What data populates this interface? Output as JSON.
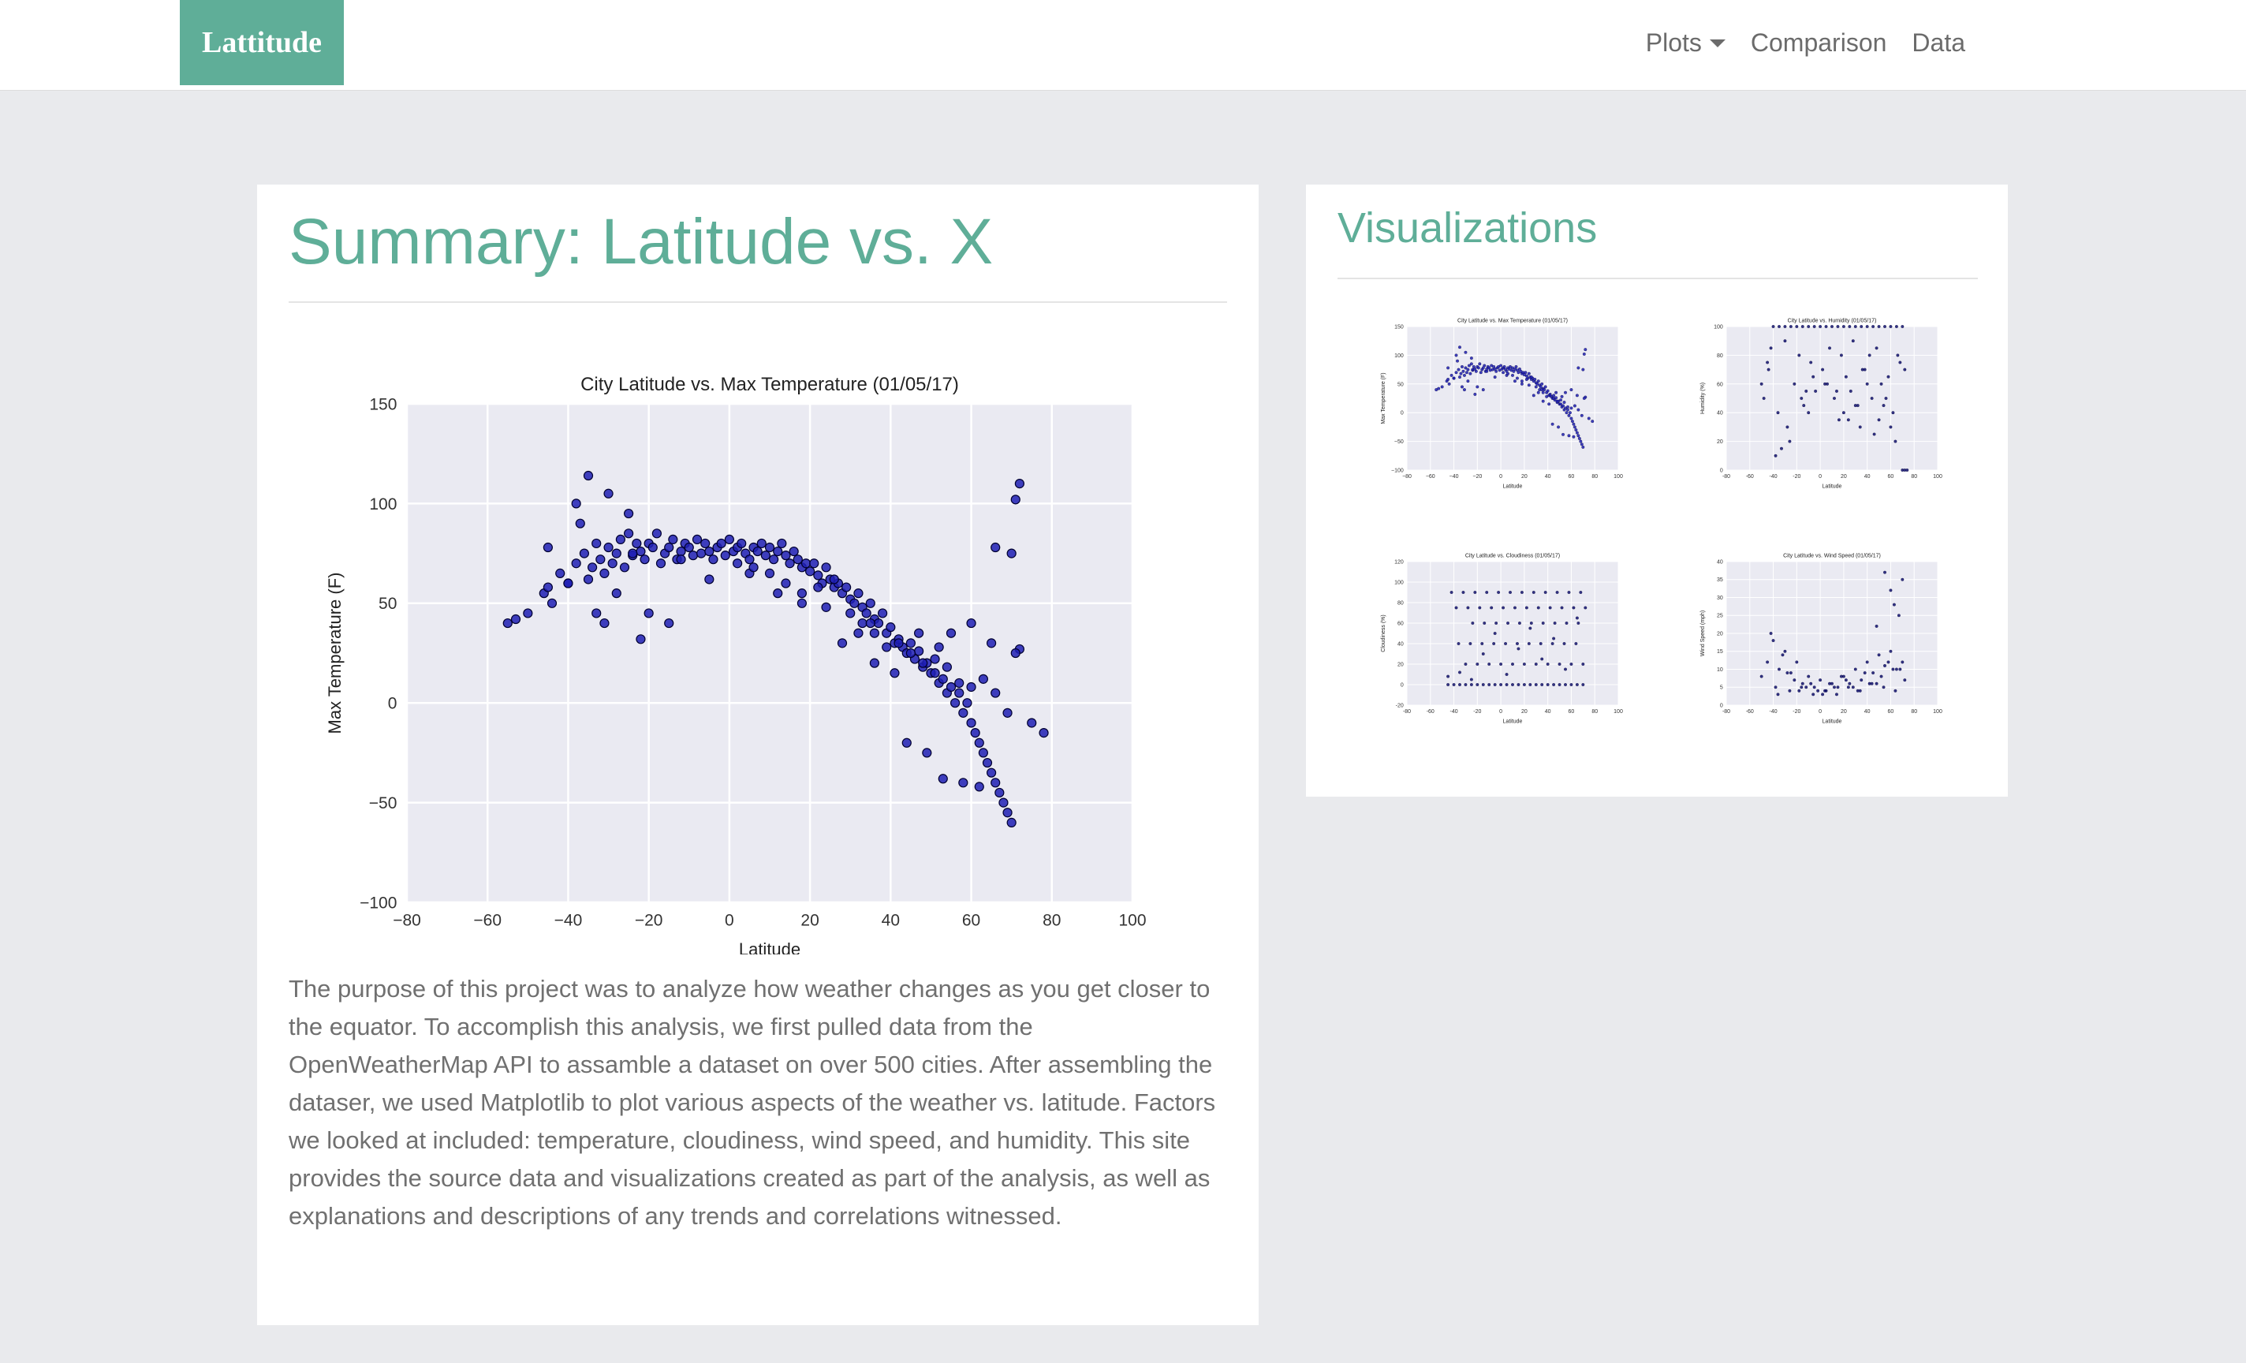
{
  "navbar": {
    "brand": "Lattitude",
    "links": [
      {
        "label": "Plots",
        "dropdown": true
      },
      {
        "label": "Comparison"
      },
      {
        "label": "Data"
      }
    ]
  },
  "summary": {
    "title": "Summary: Latitude vs. X",
    "text": "The purpose of this project was to analyze how weather changes as you get closer to the equator. To accomplish this analysis, we first pulled data from the OpenWeatherMap API to assamble a dataset on over 500 cities. After assembling the dataser, we used Matplotlib to plot various aspects of the weather vs. latitude. Factors we looked at included: temperature, cloudiness, wind speed, and humidity. This site provides the source data and visualizations created as part of the analysis, as well as explanations and descriptions of any trends and correlations witnessed."
  },
  "visualizations": {
    "title": "Visualizations"
  },
  "colors": {
    "accent": "#5fae98",
    "page_bg": "#e9eaed",
    "plot_bg": "#eaeaf2",
    "marker": "#1f1fb4",
    "marker_small": "#101070"
  },
  "chart_data": [
    {
      "id": "max_temp",
      "type": "scatter",
      "title": "City Latitude vs. Max Temperature (01/05/17)",
      "xlabel": "Latitude",
      "ylabel": "Max Temperature (F)",
      "xlim": [
        -80,
        100
      ],
      "ylim": [
        -100,
        150
      ],
      "xticks": [
        "−80",
        "−60",
        "−40",
        "−20",
        "0",
        "20",
        "40",
        "60",
        "80",
        "100"
      ],
      "yticks": [
        "150",
        "100",
        "50",
        "0",
        "−50",
        "−100"
      ],
      "grid": true,
      "x": [
        -55,
        -53,
        -50,
        -46,
        -45,
        -44,
        -42,
        -40,
        -38,
        -37,
        -36,
        -35,
        -34,
        -33,
        -32,
        -31,
        -30,
        -29,
        -28,
        -27,
        -26,
        -25,
        -24,
        -23,
        -22,
        -21,
        -20,
        -19,
        -18,
        -17,
        -16,
        -15,
        -14,
        -13,
        -12,
        -11,
        -10,
        -9,
        -8,
        -7,
        -6,
        -5,
        -4,
        -3,
        -2,
        -1,
        0,
        1,
        2,
        3,
        4,
        5,
        6,
        7,
        8,
        9,
        10,
        11,
        12,
        13,
        14,
        15,
        16,
        17,
        18,
        19,
        20,
        21,
        22,
        23,
        24,
        25,
        26,
        27,
        28,
        29,
        30,
        31,
        32,
        33,
        34,
        35,
        36,
        37,
        38,
        39,
        40,
        41,
        42,
        43,
        44,
        45,
        46,
        47,
        48,
        49,
        50,
        51,
        52,
        53,
        54,
        55,
        56,
        57,
        58,
        59,
        60,
        61,
        62,
        63,
        64,
        65,
        66,
        67,
        68,
        69,
        70,
        71,
        72,
        -38,
        -35,
        -30,
        -25,
        -20,
        -15,
        -22,
        -28,
        -33,
        -40,
        -45,
        -31,
        -24,
        -12,
        -5,
        5,
        12,
        18,
        24,
        30,
        33,
        36,
        39,
        42,
        45,
        48,
        51,
        54,
        57,
        60,
        63,
        66,
        69,
        72,
        75,
        78,
        44,
        49,
        53,
        58,
        62,
        66,
        70,
        55,
        60,
        65,
        71,
        36,
        41,
        47,
        52,
        35,
        32,
        28,
        26,
        22,
        18,
        14,
        10,
        6,
        2
      ],
      "y": [
        40,
        42,
        45,
        55,
        58,
        50,
        65,
        60,
        70,
        90,
        75,
        62,
        68,
        80,
        72,
        65,
        78,
        70,
        75,
        82,
        68,
        85,
        74,
        80,
        76,
        72,
        80,
        78,
        85,
        70,
        75,
        78,
        82,
        72,
        76,
        80,
        78,
        74,
        82,
        75,
        80,
        76,
        72,
        78,
        80,
        74,
        82,
        76,
        78,
        80,
        75,
        72,
        78,
        76,
        80,
        74,
        78,
        72,
        76,
        80,
        74,
        70,
        76,
        72,
        68,
        70,
        66,
        70,
        64,
        60,
        68,
        62,
        58,
        60,
        55,
        58,
        52,
        50,
        55,
        48,
        45,
        50,
        42,
        40,
        45,
        35,
        38,
        30,
        32,
        28,
        25,
        30,
        22,
        26,
        18,
        20,
        15,
        22,
        10,
        12,
        5,
        8,
        0,
        5,
        -5,
        0,
        -10,
        -15,
        -20,
        -25,
        -30,
        -35,
        -40,
        -45,
        -50,
        -55,
        -60,
        102,
        110,
        100,
        114,
        105,
        95,
        45,
        40,
        32,
        55,
        45,
        60,
        78,
        40,
        75,
        72,
        62,
        65,
        55,
        50,
        48,
        45,
        40,
        35,
        28,
        30,
        25,
        20,
        15,
        18,
        10,
        8,
        12,
        5,
        -5,
        27,
        -10,
        -15,
        -20,
        -25,
        -38,
        -40,
        -42,
        78,
        75,
        35,
        40,
        30,
        25,
        20,
        15,
        35,
        28,
        40,
        35,
        30,
        62,
        58,
        55,
        60,
        65,
        68,
        70
      ],
      "marker": "#1f1fb4"
    },
    {
      "id": "humidity",
      "type": "scatter",
      "title": "City Latitude vs. Humidity (01/05/17)",
      "xlabel": "Latitude",
      "ylabel": "Humidity (%)",
      "xlim": [
        -80,
        100
      ],
      "ylim": [
        0,
        100
      ],
      "xticks": [
        "-80",
        "-60",
        "-40",
        "-20",
        "0",
        "20",
        "40",
        "60",
        "80",
        "100"
      ],
      "yticks": [
        "100",
        "80",
        "60",
        "40",
        "20",
        "0"
      ],
      "grid": true,
      "x": [
        -50,
        -45,
        -40,
        -35,
        -30,
        -25,
        -20,
        -15,
        -10,
        -5,
        0,
        5,
        10,
        15,
        20,
        25,
        30,
        35,
        40,
        45,
        50,
        55,
        60,
        65,
        70,
        -42,
        -30,
        -18,
        -8,
        8,
        18,
        28,
        38,
        48,
        58,
        68,
        -36,
        -22,
        -12,
        2,
        12,
        22,
        32,
        42,
        52,
        62,
        72,
        -48,
        -28,
        -14,
        6,
        16,
        26,
        36,
        46,
        56,
        66,
        -26,
        -10,
        14,
        34,
        54,
        -33,
        -6,
        24,
        44,
        64,
        -38,
        -16,
        4,
        20,
        40,
        60,
        70,
        72,
        74,
        -44,
        -4,
        30,
        50
      ],
      "y": [
        60,
        75,
        100,
        100,
        100,
        100,
        100,
        100,
        100,
        100,
        100,
        100,
        100,
        100,
        100,
        100,
        100,
        100,
        100,
        100,
        100,
        100,
        100,
        100,
        100,
        85,
        90,
        80,
        75,
        85,
        80,
        90,
        70,
        85,
        65,
        75,
        40,
        60,
        55,
        70,
        50,
        65,
        45,
        80,
        60,
        40,
        70,
        50,
        30,
        45,
        60,
        35,
        55,
        70,
        25,
        50,
        80,
        20,
        40,
        55,
        30,
        45,
        15,
        65,
        35,
        50,
        20,
        10,
        50,
        60,
        40,
        60,
        30,
        0,
        0,
        0,
        70,
        55,
        45,
        35
      ],
      "marker": "#101070"
    },
    {
      "id": "cloudiness",
      "type": "scatter",
      "title": "City Latitude vs. Cloudiness (01/05/17)",
      "xlabel": "Latitude",
      "ylabel": "Cloudiness (%)",
      "xlim": [
        -80,
        100
      ],
      "ylim": [
        -20,
        120
      ],
      "xticks": [
        "-80",
        "-60",
        "-40",
        "-20",
        "0",
        "20",
        "40",
        "60",
        "80",
        "100"
      ],
      "yticks": [
        "120",
        "100",
        "80",
        "60",
        "40",
        "20",
        "0",
        "-20"
      ],
      "grid": true,
      "x": [
        -45,
        -40,
        -35,
        -30,
        -25,
        -20,
        -15,
        -10,
        -5,
        0,
        5,
        10,
        15,
        20,
        25,
        30,
        35,
        40,
        45,
        50,
        55,
        60,
        65,
        70,
        -38,
        -28,
        -18,
        -8,
        2,
        12,
        22,
        32,
        42,
        52,
        62,
        72,
        -42,
        -32,
        -22,
        -12,
        -2,
        8,
        18,
        28,
        38,
        48,
        58,
        68,
        -36,
        -26,
        -16,
        -6,
        4,
        14,
        24,
        34,
        44,
        54,
        64,
        -30,
        -20,
        -10,
        0,
        10,
        20,
        30,
        40,
        50,
        60,
        70,
        -24,
        -14,
        -4,
        6,
        16,
        26,
        36,
        46,
        56,
        66,
        -45,
        -35,
        -25,
        -15,
        -5,
        5,
        15,
        25,
        35,
        45,
        55,
        65
      ],
      "y": [
        0,
        0,
        0,
        0,
        0,
        0,
        0,
        0,
        0,
        0,
        0,
        0,
        0,
        0,
        0,
        0,
        0,
        0,
        0,
        0,
        0,
        0,
        0,
        0,
        75,
        75,
        75,
        75,
        75,
        75,
        75,
        75,
        75,
        75,
        75,
        75,
        90,
        90,
        90,
        90,
        90,
        90,
        90,
        90,
        90,
        90,
        90,
        90,
        40,
        40,
        40,
        40,
        40,
        40,
        40,
        40,
        40,
        40,
        40,
        20,
        20,
        20,
        20,
        20,
        20,
        20,
        20,
        20,
        20,
        20,
        60,
        60,
        60,
        60,
        60,
        60,
        60,
        60,
        60,
        60,
        8,
        12,
        5,
        30,
        50,
        10,
        35,
        55,
        25,
        45,
        15,
        65
      ],
      "marker": "#101070"
    },
    {
      "id": "wind_speed",
      "type": "scatter",
      "title": "City Latitude vs. Wind Speed (01/05/17)",
      "xlabel": "Latitude",
      "ylabel": "Wind Speed (mph)",
      "xlim": [
        -80,
        100
      ],
      "ylim": [
        0,
        40
      ],
      "xticks": [
        "-80",
        "-60",
        "-40",
        "-20",
        "0",
        "20",
        "40",
        "60",
        "80",
        "100"
      ],
      "yticks": [
        "40",
        "35",
        "30",
        "25",
        "20",
        "15",
        "10",
        "5",
        "0"
      ],
      "grid": true,
      "x": [
        -50,
        -45,
        -40,
        -35,
        -30,
        -25,
        -20,
        -15,
        -10,
        -5,
        0,
        5,
        10,
        15,
        20,
        25,
        30,
        35,
        40,
        45,
        50,
        55,
        60,
        65,
        70,
        -42,
        -32,
        -22,
        -12,
        -2,
        8,
        18,
        28,
        38,
        48,
        58,
        68,
        -38,
        -28,
        -18,
        -8,
        2,
        12,
        22,
        32,
        42,
        52,
        62,
        72,
        -36,
        -26,
        -16,
        -6,
        4,
        14,
        24,
        34,
        44,
        54,
        64,
        55,
        60,
        63,
        67,
        70,
        48
      ],
      "y": [
        8,
        12,
        18,
        10,
        15,
        9,
        12,
        6,
        8,
        5,
        7,
        4,
        6,
        5,
        8,
        6,
        10,
        7,
        12,
        9,
        14,
        11,
        15,
        10,
        12,
        20,
        14,
        7,
        5,
        4,
        6,
        8,
        5,
        9,
        6,
        12,
        10,
        5,
        9,
        4,
        6,
        3,
        5,
        7,
        4,
        6,
        8,
        10,
        7,
        3,
        4,
        5,
        3,
        4,
        3,
        5,
        4,
        6,
        5,
        4,
        37,
        32,
        28,
        25,
        35,
        22
      ],
      "marker": "#101070"
    }
  ]
}
